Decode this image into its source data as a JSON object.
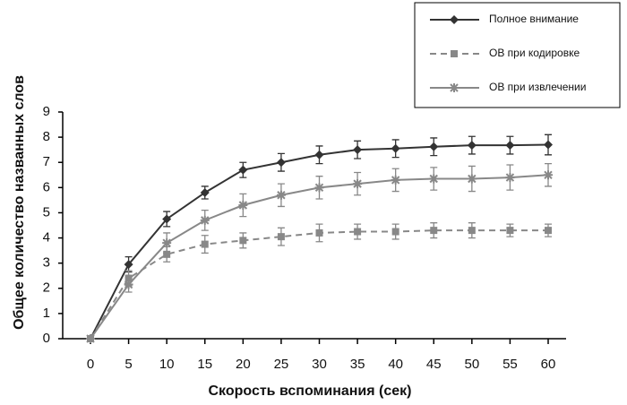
{
  "chart_data": {
    "type": "line",
    "x_label": "Скорость вспоминания (сек)",
    "y_label": "Общее количество названных слов",
    "x": [
      0,
      5,
      10,
      15,
      20,
      25,
      30,
      35,
      40,
      45,
      50,
      55,
      60
    ],
    "series": [
      {
        "name": "Полное внимание",
        "color": "#333333",
        "dash": false,
        "marker": "diamond",
        "values": [
          0,
          2.95,
          4.75,
          5.8,
          6.7,
          7.0,
          7.3,
          7.5,
          7.55,
          7.62,
          7.68,
          7.68,
          7.7
        ],
        "errors": [
          0,
          0.3,
          0.3,
          0.25,
          0.3,
          0.35,
          0.35,
          0.35,
          0.35,
          0.35,
          0.35,
          0.35,
          0.4
        ]
      },
      {
        "name": "ОВ при кодировке",
        "color": "#888888",
        "dash": true,
        "marker": "square",
        "values": [
          0,
          2.4,
          3.35,
          3.75,
          3.9,
          4.05,
          4.2,
          4.25,
          4.25,
          4.3,
          4.3,
          4.3,
          4.3
        ],
        "errors": [
          0,
          0.3,
          0.3,
          0.35,
          0.3,
          0.35,
          0.35,
          0.3,
          0.3,
          0.3,
          0.3,
          0.25,
          0.25
        ]
      },
      {
        "name": "ОВ при извлечении",
        "color": "#888888",
        "dash": false,
        "marker": "star",
        "values": [
          0,
          2.15,
          3.8,
          4.7,
          5.3,
          5.7,
          6.0,
          6.15,
          6.3,
          6.35,
          6.35,
          6.4,
          6.5
        ],
        "errors": [
          0,
          0.3,
          0.4,
          0.4,
          0.45,
          0.45,
          0.45,
          0.45,
          0.45,
          0.45,
          0.5,
          0.5,
          0.45
        ]
      }
    ],
    "xlim": [
      0,
      60
    ],
    "xticks": [
      0,
      5,
      10,
      15,
      20,
      25,
      30,
      35,
      40,
      45,
      50,
      55,
      60
    ],
    "ylim": [
      0,
      9
    ],
    "yticks": [
      0,
      1,
      2,
      3,
      4,
      5,
      6,
      7,
      8,
      9
    ],
    "grid": false,
    "legend": "upper right"
  }
}
